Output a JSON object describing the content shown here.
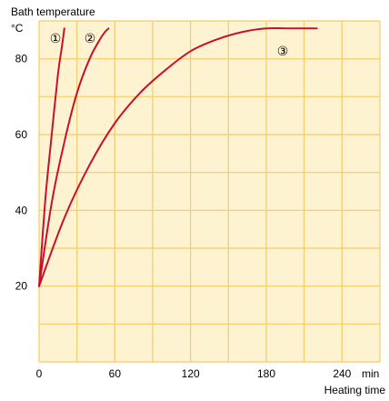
{
  "chart_data": {
    "type": "line",
    "ylabel": "Bath temperature",
    "yunit": "°C",
    "xlabel": "Heating time",
    "xunit": "min",
    "xlim": [
      0,
      270
    ],
    "ylim": [
      0,
      90
    ],
    "x_ticks": [
      0,
      60,
      120,
      180,
      240
    ],
    "y_ticks": [
      20,
      40,
      60,
      80
    ],
    "x_grid": [
      0,
      30,
      60,
      90,
      120,
      150,
      180,
      210,
      240,
      270
    ],
    "y_grid": [
      0,
      10,
      20,
      30,
      40,
      50,
      60,
      70,
      80,
      90
    ],
    "grid": true,
    "colors": {
      "background": "#fdf3d0",
      "grid": "#f2cc6a",
      "series": "#c8102e"
    },
    "series": [
      {
        "name": "①",
        "x": [
          0,
          5,
          10,
          15,
          18,
          20
        ],
        "y": [
          20,
          43,
          60,
          76,
          83,
          88
        ]
      },
      {
        "name": "②",
        "x": [
          0,
          10,
          20,
          30,
          40,
          48,
          52,
          55
        ],
        "y": [
          20,
          42,
          58,
          71,
          80,
          85,
          87,
          88
        ]
      },
      {
        "name": "③",
        "x": [
          0,
          20,
          40,
          60,
          80,
          100,
          120,
          140,
          160,
          180,
          200,
          220
        ],
        "y": [
          20,
          38,
          52,
          63,
          71,
          77,
          82,
          85,
          87,
          88,
          88,
          88
        ]
      }
    ]
  }
}
